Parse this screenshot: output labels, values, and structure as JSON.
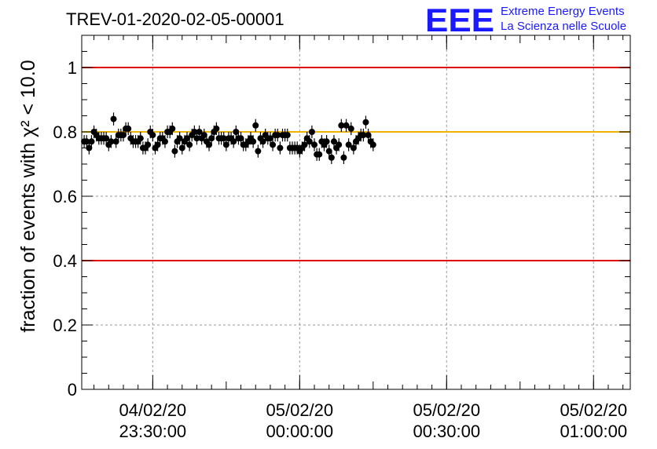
{
  "header": {
    "run_title": "TREV-01-2020-02-05-00001",
    "logo_text": "EEE",
    "logo_line1": "Extreme Energy Events",
    "logo_line2": "La Scienza nelle Scuole"
  },
  "chart_data": {
    "type": "scatter",
    "title": "TREV-01-2020-02-05-00001",
    "ylabel": "fraction of events with χ² < 10.0",
    "xlabel": "",
    "ylim": [
      0,
      1.1
    ],
    "xlim": [
      "2020-02-04 23:15:30",
      "2020-02-05 01:07:30"
    ],
    "grid": true,
    "y_ticks": [
      "0",
      "0.2",
      "0.4",
      "0.6",
      "0.8",
      "1"
    ],
    "x_ticks": [
      {
        "date": "04/02/20",
        "time": "23:30:00"
      },
      {
        "date": "05/02/20",
        "time": "00:00:00"
      },
      {
        "date": "05/02/20",
        "time": "00:30:00"
      },
      {
        "date": "05/02/20",
        "time": "01:00:00"
      }
    ],
    "reference_lines": [
      {
        "y": 1.0,
        "color": "#e00000"
      },
      {
        "y": 0.4,
        "color": "#e00000"
      },
      {
        "y": 0.8,
        "color": "#f0b400"
      }
    ],
    "series": [
      {
        "color": "#000000",
        "x_start": "2020-02-04 23:16:00",
        "x_step_seconds": 30,
        "values": [
          0.77,
          0.77,
          0.75,
          0.77,
          0.8,
          0.79,
          0.78,
          0.78,
          0.78,
          0.78,
          0.76,
          0.77,
          0.84,
          0.77,
          0.79,
          0.79,
          0.79,
          0.81,
          0.81,
          0.78,
          0.77,
          0.77,
          0.77,
          0.78,
          0.75,
          0.75,
          0.76,
          0.8,
          0.79,
          0.75,
          0.76,
          0.78,
          0.78,
          0.77,
          0.8,
          0.8,
          0.81,
          0.74,
          0.77,
          0.78,
          0.75,
          0.77,
          0.78,
          0.76,
          0.79,
          0.8,
          0.78,
          0.8,
          0.78,
          0.79,
          0.77,
          0.76,
          0.78,
          0.8,
          0.81,
          0.78,
          0.78,
          0.78,
          0.76,
          0.78,
          0.78,
          0.77,
          0.8,
          0.78,
          0.78,
          0.76,
          0.76,
          0.77,
          0.78,
          0.77,
          0.82,
          0.74,
          0.78,
          0.77,
          0.79,
          0.78,
          0.78,
          0.76,
          0.79,
          0.79,
          0.75,
          0.79,
          0.79,
          0.79,
          0.75,
          0.75,
          0.75,
          0.75,
          0.74,
          0.75,
          0.76,
          0.78,
          0.77,
          0.8,
          0.76,
          0.73,
          0.73,
          0.77,
          0.76,
          0.77,
          0.74,
          0.72,
          0.77,
          0.75,
          0.76,
          0.82,
          0.72,
          0.82,
          0.76,
          0.81,
          0.75,
          0.77,
          0.78,
          0.79,
          0.79,
          0.83,
          0.79,
          0.77,
          0.76
        ],
        "errors": 0.02
      }
    ]
  }
}
